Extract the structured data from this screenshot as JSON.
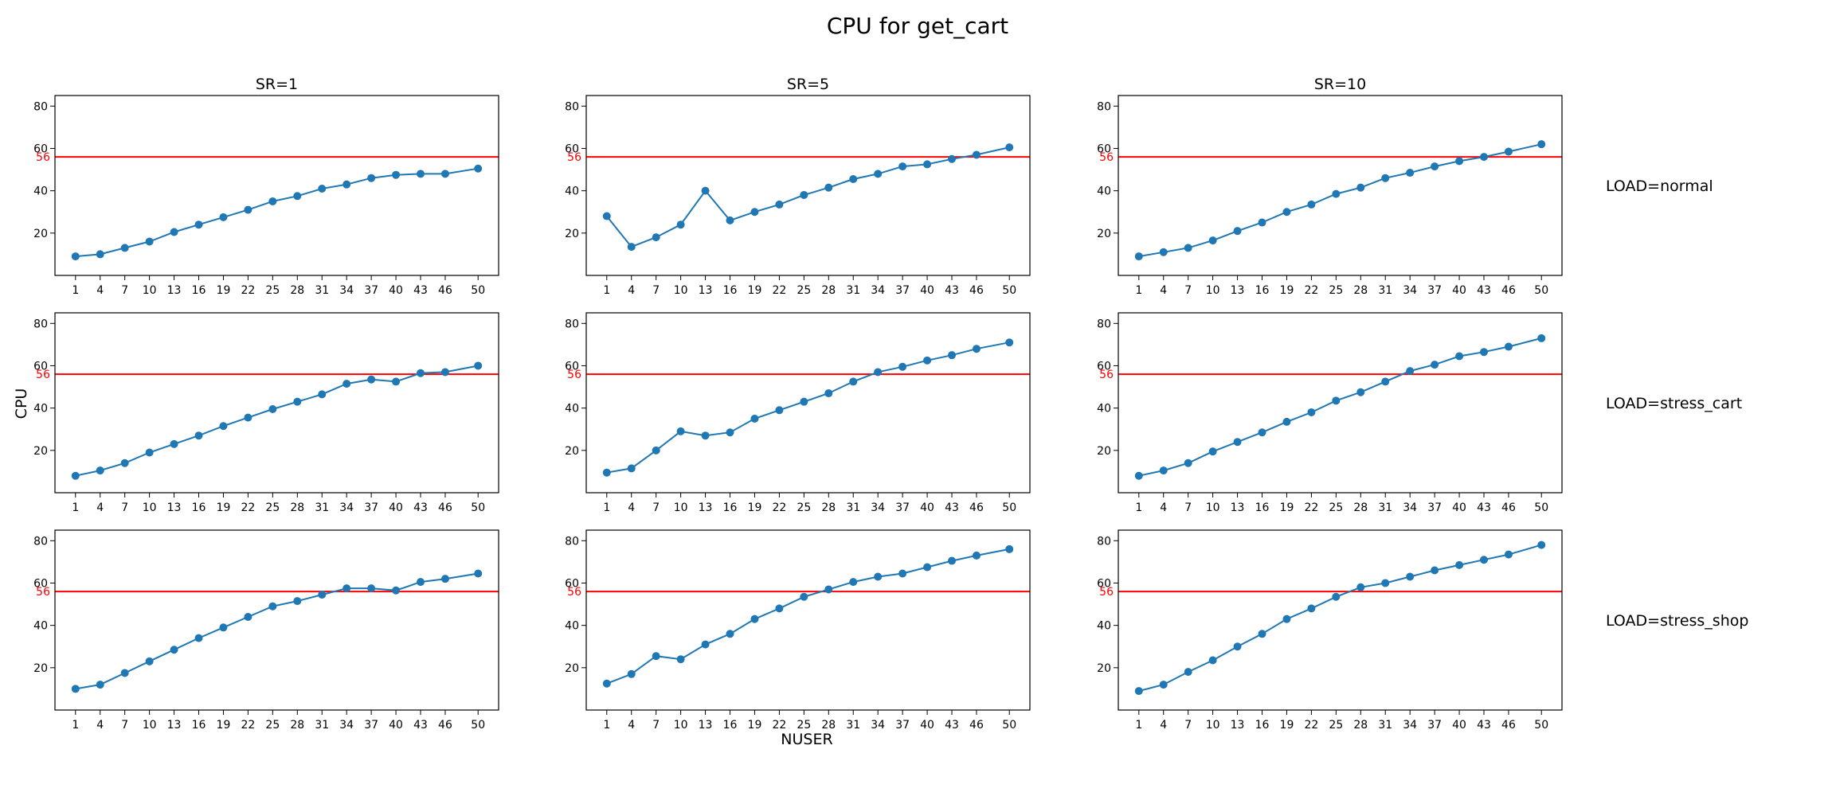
{
  "title": "CPU for get_cart",
  "xlabel": "NUSER",
  "ylabel": "CPU",
  "col_titles": [
    "SR=1",
    "SR=5",
    "SR=10"
  ],
  "row_titles": [
    "LOAD=normal",
    "LOAD=stress_cart",
    "LOAD=stress_shop"
  ],
  "colors": {
    "series": "#1f77b4",
    "reference": "#ff0000"
  },
  "chart_data": {
    "type": "line",
    "grid": false,
    "x": [
      1,
      4,
      7,
      10,
      13,
      16,
      19,
      22,
      25,
      28,
      31,
      34,
      37,
      40,
      43,
      46,
      50
    ],
    "xticks": [
      1,
      4,
      7,
      10,
      13,
      16,
      19,
      22,
      25,
      28,
      31,
      34,
      37,
      40,
      43,
      46,
      50
    ],
    "yticks": [
      20,
      40,
      60,
      80
    ],
    "ylim": [
      0,
      85
    ],
    "reference_line": {
      "value": 56,
      "label": "56"
    },
    "panels": [
      {
        "row": "LOAD=normal",
        "col": "SR=1",
        "values": [
          9,
          10,
          13,
          16,
          20.5,
          24,
          27.5,
          31,
          35,
          37.5,
          41,
          43,
          46,
          47.5,
          48,
          48,
          50.5
        ]
      },
      {
        "row": "LOAD=normal",
        "col": "SR=5",
        "values": [
          28,
          13.5,
          18,
          24,
          40,
          26,
          30,
          33.5,
          38,
          41.5,
          45.5,
          48,
          51.5,
          52.5,
          55,
          57,
          60.5
        ]
      },
      {
        "row": "LOAD=normal",
        "col": "SR=10",
        "values": [
          9,
          11,
          13,
          16.5,
          21,
          25,
          30,
          33.5,
          38.5,
          41.5,
          46,
          48.5,
          51.5,
          54,
          56,
          58.5,
          62
        ]
      },
      {
        "row": "LOAD=stress_cart",
        "col": "SR=1",
        "values": [
          8,
          10.5,
          14,
          19,
          23,
          27,
          31.5,
          35.5,
          39.5,
          43,
          46.5,
          51.5,
          53.5,
          52.5,
          56.5,
          57,
          60
        ]
      },
      {
        "row": "LOAD=stress_cart",
        "col": "SR=5",
        "values": [
          9.5,
          11.5,
          20,
          29,
          27,
          28.5,
          35,
          39,
          43,
          47,
          52.5,
          57,
          59.5,
          62.5,
          65,
          68,
          71
        ]
      },
      {
        "row": "LOAD=stress_cart",
        "col": "SR=10",
        "values": [
          8,
          10.5,
          14,
          19.5,
          24,
          28.5,
          33.5,
          38,
          43.5,
          47.5,
          52.5,
          57.5,
          60.5,
          64.5,
          66.5,
          69,
          73
        ]
      },
      {
        "row": "LOAD=stress_shop",
        "col": "SR=1",
        "values": [
          10,
          12,
          17.5,
          23,
          28.5,
          34,
          39,
          44,
          49,
          51.5,
          54.5,
          57.5,
          57.5,
          56.5,
          60.5,
          62,
          64.5
        ]
      },
      {
        "row": "LOAD=stress_shop",
        "col": "SR=5",
        "values": [
          12.5,
          17,
          25.5,
          24,
          31,
          36,
          43,
          48,
          53.5,
          57,
          60.5,
          63,
          64.5,
          67.5,
          70.5,
          73,
          76
        ]
      },
      {
        "row": "LOAD=stress_shop",
        "col": "SR=10",
        "values": [
          9,
          12,
          18,
          23.5,
          30,
          36,
          43,
          48,
          53.5,
          58,
          60,
          63,
          66,
          68.5,
          71,
          73.5,
          78
        ]
      }
    ]
  }
}
